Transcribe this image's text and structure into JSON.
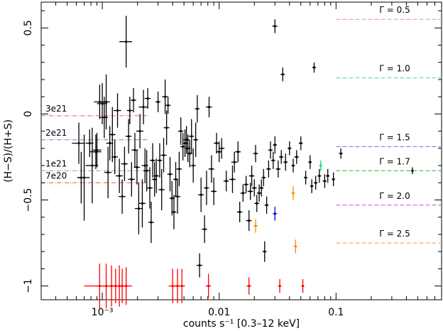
{
  "chart_data": {
    "type": "scatter",
    "xlabel": "counts s⁻¹ [0.3–12 keV]",
    "ylabel": "(H−S)/(H+S)",
    "xscale": "log",
    "xlim": [
      0.0003,
      0.8
    ],
    "ylim": [
      -1.08,
      0.65
    ],
    "x_ticks": [
      {
        "value": 0.001,
        "label": "10⁻³"
      },
      {
        "value": 0.01,
        "label": "0.01"
      },
      {
        "value": 0.1,
        "label": "0.1"
      }
    ],
    "y_ticks": [
      {
        "value": 0.5,
        "label": "0.5"
      },
      {
        "value": 0,
        "label": "0"
      },
      {
        "value": -0.5,
        "label": "−0.5"
      },
      {
        "value": -1,
        "label": "−1"
      }
    ],
    "nh_lines": [
      {
        "label": "3e21",
        "y": -0.01,
        "color": "#e0607e"
      },
      {
        "label": "2e21",
        "y": -0.15,
        "color": "#9966cc"
      },
      {
        "label": "1e21",
        "y": -0.33,
        "color": "#66aadd"
      },
      {
        "label": "7e20",
        "y": -0.4,
        "color": "#cc6633"
      }
    ],
    "gamma_lines": [
      {
        "label": "Γ = 0.5",
        "y": 0.55,
        "color": "#dd88dd"
      },
      {
        "label": "Γ = 1.0",
        "y": 0.21,
        "color": "#55cccc"
      },
      {
        "label": "Γ = 1.5",
        "y": -0.19,
        "color": "#7777dd"
      },
      {
        "label": "Γ = 1.7",
        "y": -0.33,
        "color": "#33bb33"
      },
      {
        "label": "Γ = 2.0",
        "y": -0.53,
        "color": "#bb55cc"
      },
      {
        "label": "Γ = 2.5",
        "y": -0.75,
        "color": "#ee9955"
      }
    ],
    "series": [
      {
        "color": "#000000",
        "points": [
          {
            "x": 0.00063,
            "y": -0.17,
            "xerr": 8e-05,
            "yerr": 0.12
          },
          {
            "x": 0.00066,
            "y": -0.37,
            "xerr": 5e-05,
            "yerr": 0.15
          },
          {
            "x": 0.0007,
            "y": -0.37,
            "xerr": 8e-05,
            "yerr": 0.25
          },
          {
            "x": 0.00078,
            "y": -0.17,
            "xerr": 6e-05,
            "yerr": 0.08
          },
          {
            "x": 0.00082,
            "y": -0.3,
            "xerr": 0.0001,
            "yerr": 0.22
          },
          {
            "x": 0.00088,
            "y": -0.22,
            "xerr": 0.0001,
            "yerr": 0.1
          },
          {
            "x": 0.0009,
            "y": -0.21,
            "xerr": 8e-05,
            "yerr": 0.1
          },
          {
            "x": 0.00095,
            "y": 0.07,
            "xerr": 0.0001,
            "yerr": 0.1
          },
          {
            "x": 0.001,
            "y": 0.06,
            "xerr": 0.0001,
            "yerr": 0.12
          },
          {
            "x": 0.00104,
            "y": -0.02,
            "xerr": 8e-05,
            "yerr": 0.12
          },
          {
            "x": 0.00108,
            "y": 0.07,
            "xerr": 8e-05,
            "yerr": 0.16
          },
          {
            "x": 0.00112,
            "y": -0.34,
            "xerr": 8e-05,
            "yerr": 0.15
          },
          {
            "x": 0.00116,
            "y": -0.17,
            "xerr": 8e-05,
            "yerr": 0.1
          },
          {
            "x": 0.00122,
            "y": -0.12,
            "xerr": 8e-05,
            "yerr": 0.16
          },
          {
            "x": 0.00128,
            "y": -0.25,
            "xerr": 8e-05,
            "yerr": 0.1
          },
          {
            "x": 0.00135,
            "y": 0.02,
            "xerr": 0.0001,
            "yerr": 0.1
          },
          {
            "x": 0.0014,
            "y": -0.36,
            "xerr": 0.0001,
            "yerr": 0.1
          },
          {
            "x": 0.00148,
            "y": -0.48,
            "xerr": 0.0001,
            "yerr": 0.1
          },
          {
            "x": 0.00155,
            "y": -0.29,
            "xerr": 0.0001,
            "yerr": 0.1
          },
          {
            "x": 0.0016,
            "y": 0.42,
            "xerr": 0.0002,
            "yerr": 0.15
          },
          {
            "x": 0.00168,
            "y": -0.13,
            "xerr": 0.0001,
            "yerr": 0.1
          },
          {
            "x": 0.00172,
            "y": 0.02,
            "xerr": 0.0001,
            "yerr": 0.08
          },
          {
            "x": 0.00178,
            "y": -0.38,
            "xerr": 0.00012,
            "yerr": 0.1
          },
          {
            "x": 0.00185,
            "y": 0.08,
            "xerr": 0.0001,
            "yerr": 0.07
          },
          {
            "x": 0.0019,
            "y": -0.21,
            "xerr": 0.00012,
            "yerr": 0.1
          },
          {
            "x": 0.00198,
            "y": -0.31,
            "xerr": 0.00012,
            "yerr": 0.1
          },
          {
            "x": 0.00205,
            "y": -0.55,
            "xerr": 0.00015,
            "yerr": 0.15
          },
          {
            "x": 0.0021,
            "y": -0.1,
            "xerr": 0.00015,
            "yerr": 0.1
          },
          {
            "x": 0.0022,
            "y": -0.52,
            "xerr": 0.00015,
            "yerr": 0.14
          },
          {
            "x": 0.00225,
            "y": 0.04,
            "xerr": 0.0002,
            "yerr": 0.1
          },
          {
            "x": 0.00232,
            "y": -0.3,
            "xerr": 0.00015,
            "yerr": 0.1
          },
          {
            "x": 0.0024,
            "y": -0.33,
            "xerr": 0.00015,
            "yerr": 0.12
          },
          {
            "x": 0.00245,
            "y": 0.09,
            "xerr": 0.00015,
            "yerr": 0.06
          },
          {
            "x": 0.00255,
            "y": -0.43,
            "xerr": 0.00015,
            "yerr": 0.12
          },
          {
            "x": 0.00262,
            "y": -0.63,
            "xerr": 0.00015,
            "yerr": 0.12
          },
          {
            "x": 0.0027,
            "y": -0.27,
            "xerr": 0.00015,
            "yerr": 0.1
          },
          {
            "x": 0.0028,
            "y": -0.38,
            "xerr": 0.00015,
            "yerr": 0.1
          },
          {
            "x": 0.0029,
            "y": -0.36,
            "xerr": 0.00015,
            "yerr": 0.1
          },
          {
            "x": 0.003,
            "y": 0.07,
            "xerr": 0.00015,
            "yerr": 0.06
          },
          {
            "x": 0.0031,
            "y": -0.27,
            "xerr": 0.00015,
            "yerr": 0.1
          },
          {
            "x": 0.00322,
            "y": -0.44,
            "xerr": 0.0002,
            "yerr": 0.12
          },
          {
            "x": 0.00335,
            "y": -0.24,
            "xerr": 0.0002,
            "yerr": 0.1
          },
          {
            "x": 0.00345,
            "y": 0.1,
            "xerr": 0.0002,
            "yerr": 0.1
          },
          {
            "x": 0.00355,
            "y": -0.08,
            "xerr": 0.0002,
            "yerr": 0.1
          },
          {
            "x": 0.00365,
            "y": 0.05,
            "xerr": 0.0002,
            "yerr": 0.05
          },
          {
            "x": 0.0038,
            "y": -0.35,
            "xerr": 0.0002,
            "yerr": 0.1
          },
          {
            "x": 0.00395,
            "y": -0.49,
            "xerr": 0.0002,
            "yerr": 0.1
          },
          {
            "x": 0.0041,
            "y": -0.57,
            "xerr": 0.0002,
            "yerr": 0.1
          },
          {
            "x": 0.00425,
            "y": -0.38,
            "xerr": 0.0002,
            "yerr": 0.1
          },
          {
            "x": 0.0044,
            "y": -0.48,
            "xerr": 0.00025,
            "yerr": 0.1
          },
          {
            "x": 0.00455,
            "y": -0.32,
            "xerr": 0.00025,
            "yerr": 0.1
          },
          {
            "x": 0.0047,
            "y": -0.1,
            "xerr": 0.00025,
            "yerr": 0.08
          },
          {
            "x": 0.0049,
            "y": -0.19,
            "xerr": 0.00025,
            "yerr": 0.08
          },
          {
            "x": 0.0051,
            "y": -0.17,
            "xerr": 0.00025,
            "yerr": 0.08
          },
          {
            "x": 0.00525,
            "y": -0.15,
            "xerr": 0.0003,
            "yerr": 0.08
          },
          {
            "x": 0.0054,
            "y": -0.2,
            "xerr": 0.0003,
            "yerr": 0.08
          },
          {
            "x": 0.0056,
            "y": -0.23,
            "xerr": 0.0003,
            "yerr": 0.08
          },
          {
            "x": 0.0058,
            "y": -0.13,
            "xerr": 0.0003,
            "yerr": 0.1
          },
          {
            "x": 0.006,
            "y": -0.3,
            "xerr": 0.0003,
            "yerr": 0.1
          },
          {
            "x": 0.0063,
            "y": -0.15,
            "xerr": 0.0003,
            "yerr": 0.1
          },
          {
            "x": 0.0065,
            "y": 0.03,
            "xerr": 0.0003,
            "yerr": 0.08
          },
          {
            "x": 0.0068,
            "y": -0.88,
            "xerr": 0.0004,
            "yerr": 0.07
          },
          {
            "x": 0.007,
            "y": -0.47,
            "xerr": 0.0004,
            "yerr": 0.1
          },
          {
            "x": 0.0075,
            "y": -0.67,
            "xerr": 0.0004,
            "yerr": 0.08
          },
          {
            "x": 0.0078,
            "y": -0.43,
            "xerr": 0.0004,
            "yerr": 0.1
          },
          {
            "x": 0.0082,
            "y": 0.04,
            "xerr": 0.0005,
            "yerr": 0.06
          },
          {
            "x": 0.0086,
            "y": -0.32,
            "xerr": 0.0005,
            "yerr": 0.08
          },
          {
            "x": 0.009,
            "y": -0.45,
            "xerr": 0.0005,
            "yerr": 0.08
          },
          {
            "x": 0.0095,
            "y": -0.17,
            "xerr": 0.0005,
            "yerr": 0.06
          },
          {
            "x": 0.01,
            "y": -0.22,
            "xerr": 0.0006,
            "yerr": 0.06
          },
          {
            "x": 0.0105,
            "y": -0.2,
            "xerr": 0.0006,
            "yerr": 0.06
          },
          {
            "x": 0.0115,
            "y": -0.39,
            "xerr": 0.0006,
            "yerr": 0.06
          },
          {
            "x": 0.013,
            "y": -0.38,
            "xerr": 0.0008,
            "yerr": 0.08
          },
          {
            "x": 0.0135,
            "y": -0.28,
            "xerr": 0.0008,
            "yerr": 0.06
          },
          {
            "x": 0.0145,
            "y": -0.22,
            "xerr": 0.0008,
            "yerr": 0.06
          },
          {
            "x": 0.015,
            "y": -0.57,
            "xerr": 0.0008,
            "yerr": 0.06
          },
          {
            "x": 0.016,
            "y": -0.46,
            "xerr": 0.0008,
            "yerr": 0.05
          },
          {
            "x": 0.017,
            "y": -0.41,
            "xerr": 0.0008,
            "yerr": 0.05
          },
          {
            "x": 0.018,
            "y": -0.62,
            "xerr": 0.001,
            "yerr": 0.06
          },
          {
            "x": 0.0185,
            "y": -0.45,
            "xerr": 0.001,
            "yerr": 0.05
          },
          {
            "x": 0.019,
            "y": -0.36,
            "xerr": 0.001,
            "yerr": 0.06
          },
          {
            "x": 0.02,
            "y": -0.43,
            "xerr": 0.001,
            "yerr": 0.05
          },
          {
            "x": 0.0205,
            "y": -0.23,
            "xerr": 0.001,
            "yerr": 0.05
          },
          {
            "x": 0.021,
            "y": -0.52,
            "xerr": 0.001,
            "yerr": 0.05
          },
          {
            "x": 0.022,
            "y": -0.46,
            "xerr": 0.001,
            "yerr": 0.05
          },
          {
            "x": 0.023,
            "y": -0.43,
            "xerr": 0.001,
            "yerr": 0.05
          },
          {
            "x": 0.024,
            "y": -0.37,
            "xerr": 0.001,
            "yerr": 0.05
          },
          {
            "x": 0.0245,
            "y": -0.8,
            "xerr": 0.001,
            "yerr": 0.06
          },
          {
            "x": 0.0255,
            "y": -0.53,
            "xerr": 0.001,
            "yerr": 0.05
          },
          {
            "x": 0.0265,
            "y": -0.32,
            "xerr": 0.0012,
            "yerr": 0.05
          },
          {
            "x": 0.0275,
            "y": -0.21,
            "xerr": 0.0012,
            "yerr": 0.05
          },
          {
            "x": 0.029,
            "y": -0.27,
            "xerr": 0.0012,
            "yerr": 0.05
          },
          {
            "x": 0.03,
            "y": 0.51,
            "xerr": 0.0015,
            "yerr": 0.04
          },
          {
            "x": 0.03,
            "y": -0.18,
            "xerr": 0.0012,
            "yerr": 0.05
          },
          {
            "x": 0.032,
            "y": -0.32,
            "xerr": 0.0015,
            "yerr": 0.05
          },
          {
            "x": 0.034,
            "y": -0.25,
            "xerr": 0.0015,
            "yerr": 0.04
          },
          {
            "x": 0.035,
            "y": 0.23,
            "xerr": 0.0015,
            "yerr": 0.04
          },
          {
            "x": 0.037,
            "y": -0.28,
            "xerr": 0.0015,
            "yerr": 0.05
          },
          {
            "x": 0.04,
            "y": -0.2,
            "xerr": 0.0015,
            "yerr": 0.04
          },
          {
            "x": 0.043,
            "y": -0.3,
            "xerr": 0.0015,
            "yerr": 0.04
          },
          {
            "x": 0.046,
            "y": -0.25,
            "xerr": 0.002,
            "yerr": 0.04
          },
          {
            "x": 0.05,
            "y": -0.17,
            "xerr": 0.002,
            "yerr": 0.04
          },
          {
            "x": 0.055,
            "y": -0.37,
            "xerr": 0.002,
            "yerr": 0.04
          },
          {
            "x": 0.06,
            "y": -0.28,
            "xerr": 0.002,
            "yerr": 0.04
          },
          {
            "x": 0.065,
            "y": 0.27,
            "xerr": 0.0025,
            "yerr": 0.03
          },
          {
            "x": 0.062,
            "y": -0.42,
            "xerr": 0.002,
            "yerr": 0.04
          },
          {
            "x": 0.067,
            "y": -0.4,
            "xerr": 0.0025,
            "yerr": 0.04
          },
          {
            "x": 0.072,
            "y": -0.36,
            "xerr": 0.0025,
            "yerr": 0.04
          },
          {
            "x": 0.08,
            "y": -0.39,
            "xerr": 0.003,
            "yerr": 0.04
          },
          {
            "x": 0.085,
            "y": -0.36,
            "xerr": 0.003,
            "yerr": 0.04
          },
          {
            "x": 0.095,
            "y": -0.38,
            "xerr": 0.003,
            "yerr": 0.04
          },
          {
            "x": 0.11,
            "y": -0.23,
            "xerr": 0.004,
            "yerr": 0.03
          },
          {
            "x": 0.45,
            "y": -0.33,
            "xerr": 0.008,
            "yerr": 0.02
          }
        ]
      },
      {
        "color": "#ff8800",
        "points": [
          {
            "x": 0.0205,
            "y": -0.65,
            "xerr": 0.0008,
            "yerr": 0.04
          },
          {
            "x": 0.043,
            "y": -0.46,
            "xerr": 0.0015,
            "yerr": 0.04
          },
          {
            "x": 0.045,
            "y": -0.77,
            "xerr": 0.0015,
            "yerr": 0.04
          }
        ]
      },
      {
        "color": "#0000cc",
        "points": [
          {
            "x": 0.03,
            "y": -0.58,
            "xerr": 0.0012,
            "yerr": 0.04
          }
        ]
      },
      {
        "color": "#00dd66",
        "points": [
          {
            "x": 0.074,
            "y": -0.3,
            "xerr": 0.002,
            "yerr": 0.03
          }
        ]
      },
      {
        "color": "#ff0000",
        "points": [
          {
            "x": 0.00095,
            "y": -1.0,
            "xerr": 0.00025,
            "yerr": 0.13
          },
          {
            "x": 0.00108,
            "y": -1.0,
            "xerr": 0.0002,
            "yerr": 0.13
          },
          {
            "x": 0.0012,
            "y": -1.0,
            "xerr": 0.0002,
            "yerr": 0.12
          },
          {
            "x": 0.0013,
            "y": -1.0,
            "xerr": 0.0002,
            "yerr": 0.1
          },
          {
            "x": 0.0014,
            "y": -1.0,
            "xerr": 0.0002,
            "yerr": 0.12
          },
          {
            "x": 0.00148,
            "y": -1.0,
            "xerr": 0.0002,
            "yerr": 0.1
          },
          {
            "x": 0.0016,
            "y": -1.0,
            "xerr": 0.0002,
            "yerr": 0.11
          },
          {
            "x": 0.004,
            "y": -1.0,
            "xerr": 0.0003,
            "yerr": 0.1
          },
          {
            "x": 0.0044,
            "y": -1.0,
            "xerr": 0.0003,
            "yerr": 0.1
          },
          {
            "x": 0.0048,
            "y": -1.0,
            "xerr": 0.0003,
            "yerr": 0.1
          },
          {
            "x": 0.0081,
            "y": -1.0,
            "xerr": 0.0004,
            "yerr": 0.07
          },
          {
            "x": 0.018,
            "y": -1.0,
            "xerr": 0.0008,
            "yerr": 0.05
          },
          {
            "x": 0.033,
            "y": -1.0,
            "xerr": 0.001,
            "yerr": 0.04
          },
          {
            "x": 0.052,
            "y": -1.0,
            "xerr": 0.0015,
            "yerr": 0.04
          }
        ]
      }
    ]
  }
}
